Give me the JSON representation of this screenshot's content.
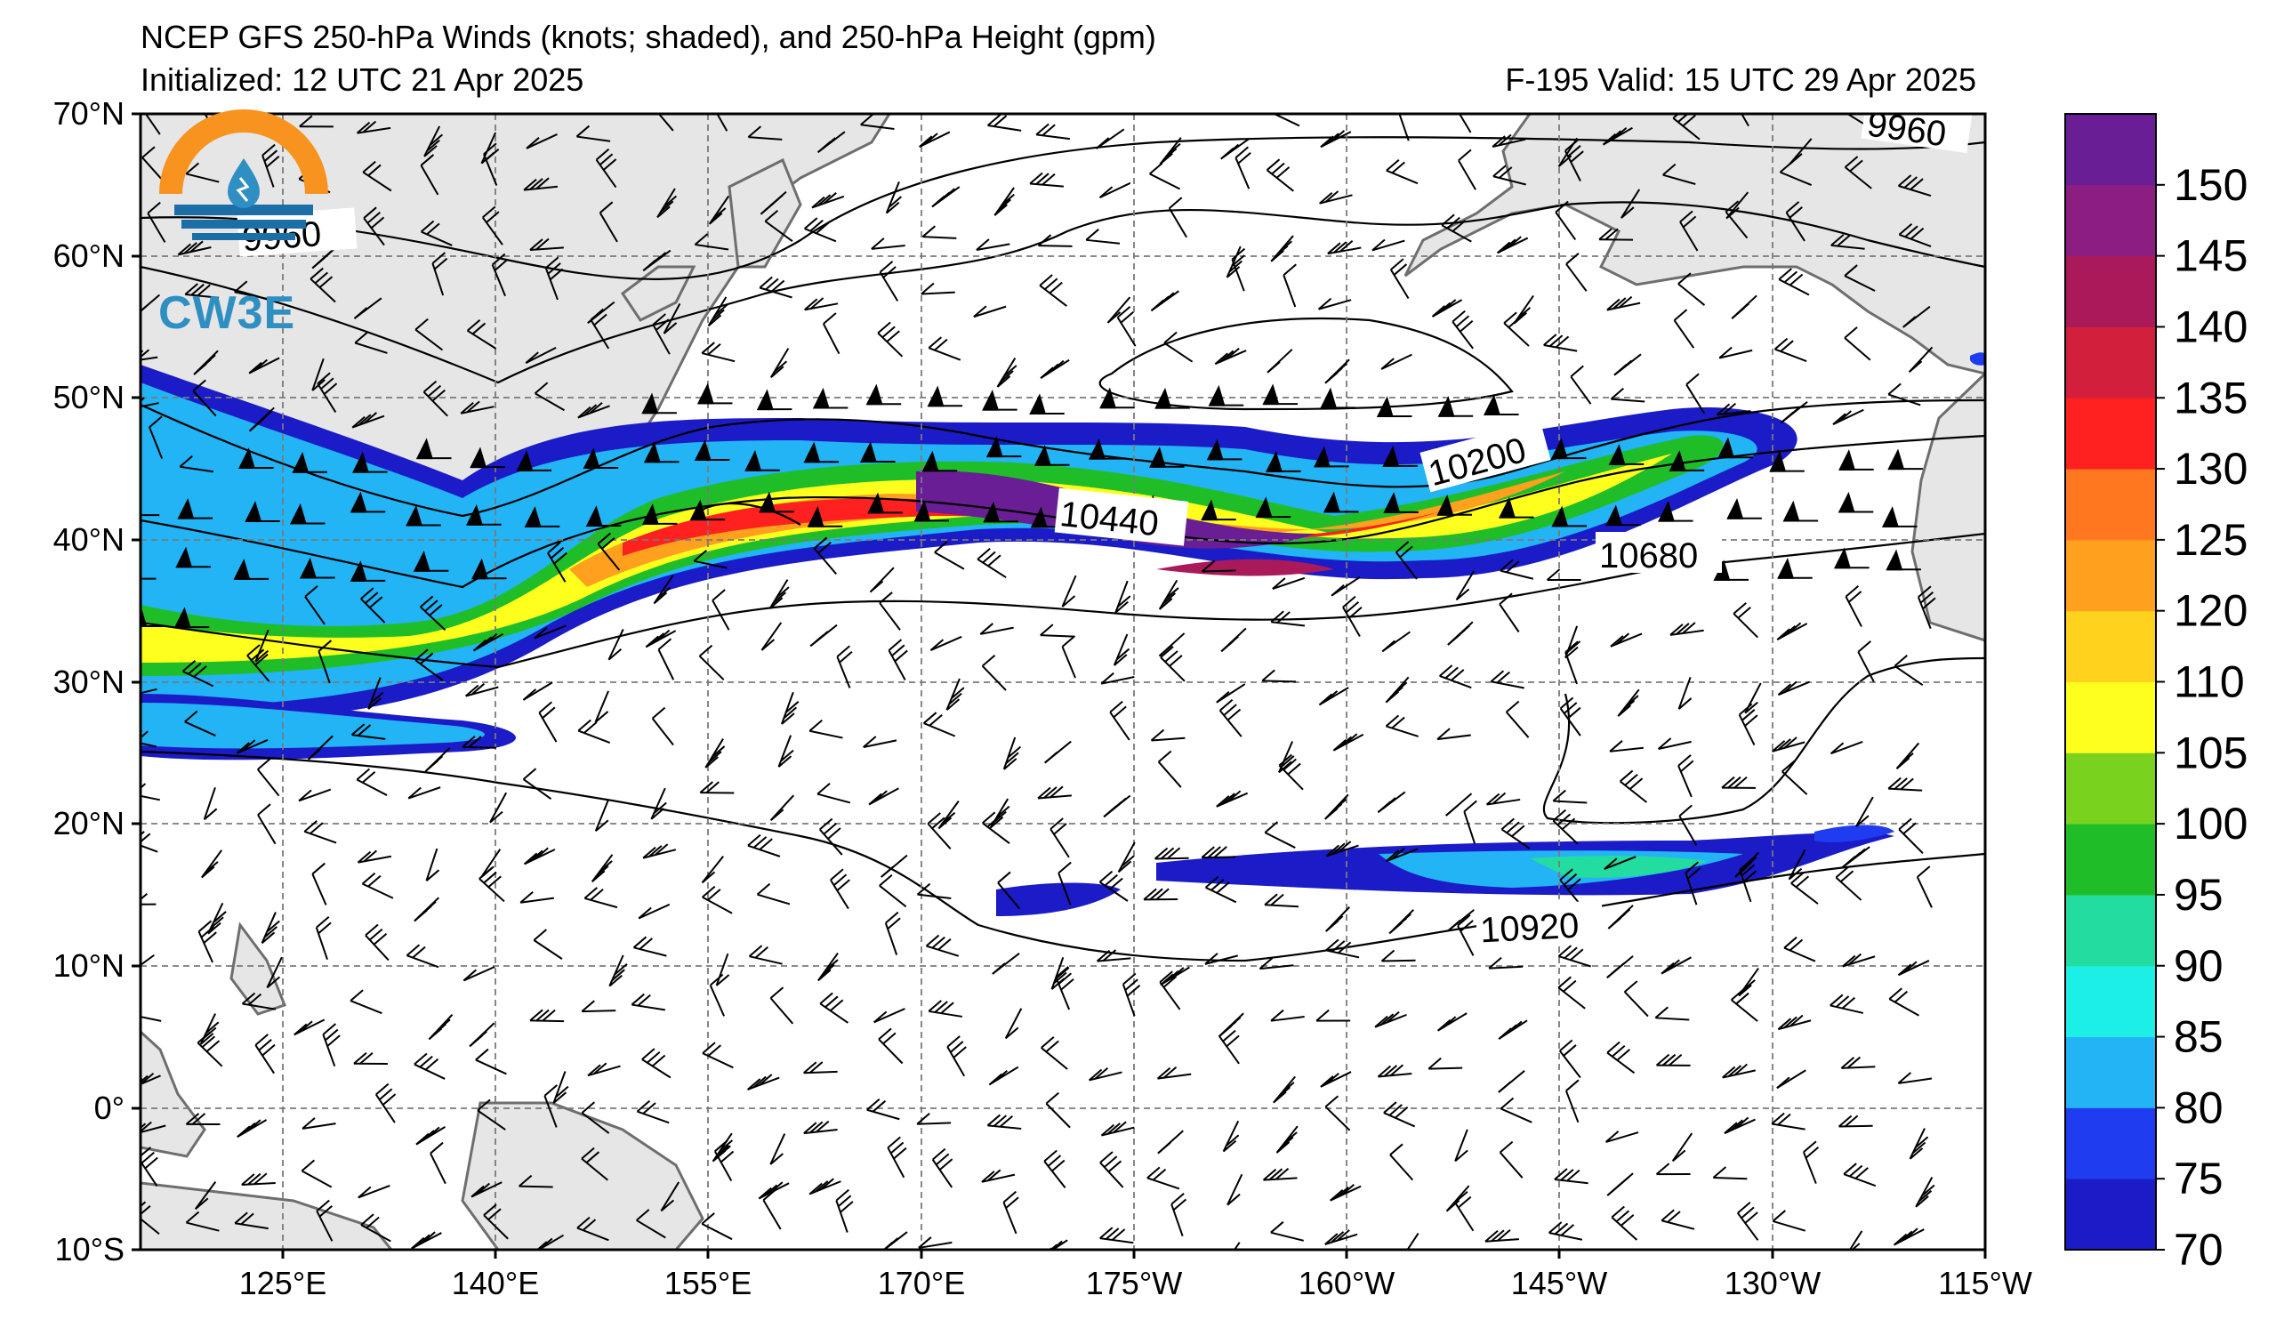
{
  "header": {
    "title": "NCEP GFS 250-hPa Winds (knots; shaded), and 250-hPa Height (gpm)",
    "initialized": "Initialized: 12 UTC 21 Apr 2025",
    "valid": "F-195  Valid: 15 UTC 29 Apr 2025"
  },
  "logo": {
    "text": "CW3E",
    "icon": "water-drop-logo-icon"
  },
  "map": {
    "lat_labels": [
      "70°N",
      "60°N",
      "50°N",
      "40°N",
      "30°N",
      "20°N",
      "10°N",
      "0°",
      "10°S"
    ],
    "lon_labels": [
      "125°E",
      "140°E",
      "155°E",
      "170°E",
      "175°W",
      "160°W",
      "145°W",
      "130°W",
      "115°W"
    ],
    "contour_labels": [
      "9960",
      "9960",
      "10200",
      "10440",
      "10680",
      "10920"
    ],
    "land_color": "#e6e6e6",
    "coast_color": "#6e6e6e"
  },
  "colorbar": {
    "ticks": [
      "150",
      "145",
      "140",
      "135",
      "130",
      "125",
      "120",
      "110",
      "105",
      "100",
      "95",
      "90",
      "85",
      "80",
      "75",
      "70"
    ],
    "colors_bottom_to_top": [
      "#1b1bc8",
      "#1f3cf0",
      "#22b4f5",
      "#1cf0e6",
      "#22dca0",
      "#1fbe28",
      "#78d21e",
      "#ffff1e",
      "#ffd21e",
      "#ffa01e",
      "#ff7820",
      "#ff2020",
      "#d2203c",
      "#aa1a5a",
      "#8c1e82",
      "#6a1e96"
    ]
  }
}
